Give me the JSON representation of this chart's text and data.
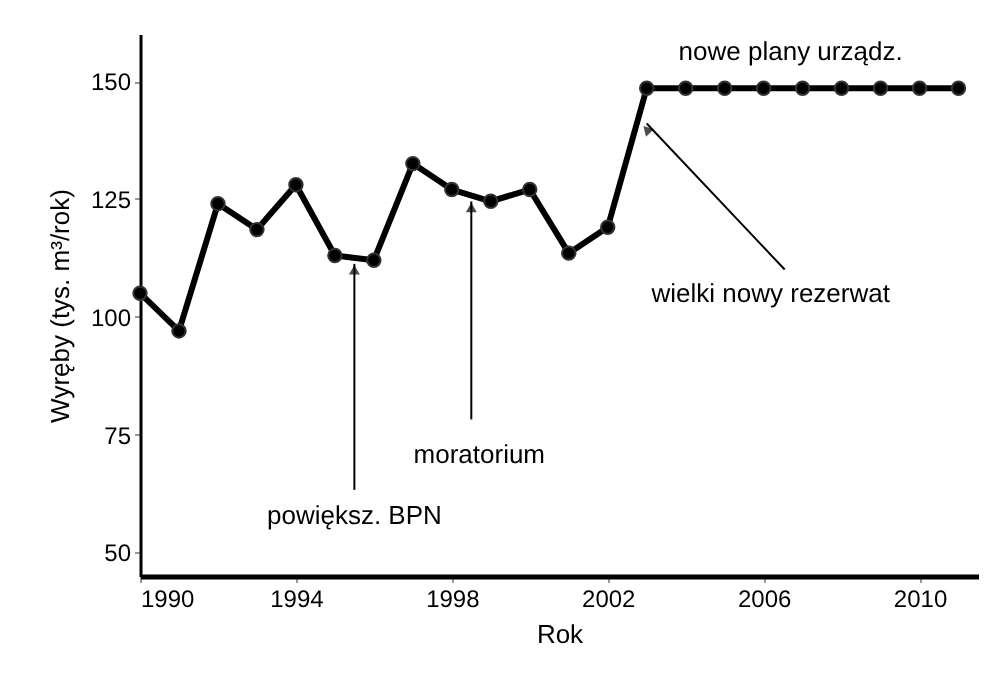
{
  "chart_data": {
    "type": "line",
    "xlabel": "Rok",
    "ylabel": "Wyręby (tys. m³/rok)",
    "x": [
      1990,
      1991,
      1992,
      1993,
      1994,
      1995,
      1996,
      1997,
      1998,
      1999,
      2000,
      2001,
      2002,
      2003,
      2004,
      2005,
      2006,
      2007,
      2008,
      2009,
      2010,
      2011
    ],
    "values": [
      105,
      97,
      124,
      118.5,
      128,
      113,
      112,
      132.5,
      127,
      124.5,
      127,
      113.5,
      119,
      148.5,
      148.5,
      148.5,
      148.5,
      148.5,
      148.5,
      148.5,
      148.5,
      148.5
    ],
    "color": "#000000",
    "marker": "circle",
    "line_style": "solid",
    "grid": false,
    "xlim": [
      1990,
      2011.5
    ],
    "xticks": [
      1990,
      1994,
      1998,
      2002,
      2006,
      2010
    ],
    "ylim": [
      45,
      160
    ],
    "yticks": [
      50,
      75,
      100,
      125,
      150
    ],
    "annotations": [
      {
        "text": "powiększ. BPN",
        "x": 1995.5,
        "y": 112.5
      },
      {
        "text": "moratorium",
        "x": 1998.5,
        "y": 125.75
      },
      {
        "text": "wielki nowy rezerwat",
        "x": 2003,
        "y": 141
      },
      {
        "text": "nowe plany urządz.",
        "x": 2007,
        "y": 148.5
      }
    ]
  }
}
